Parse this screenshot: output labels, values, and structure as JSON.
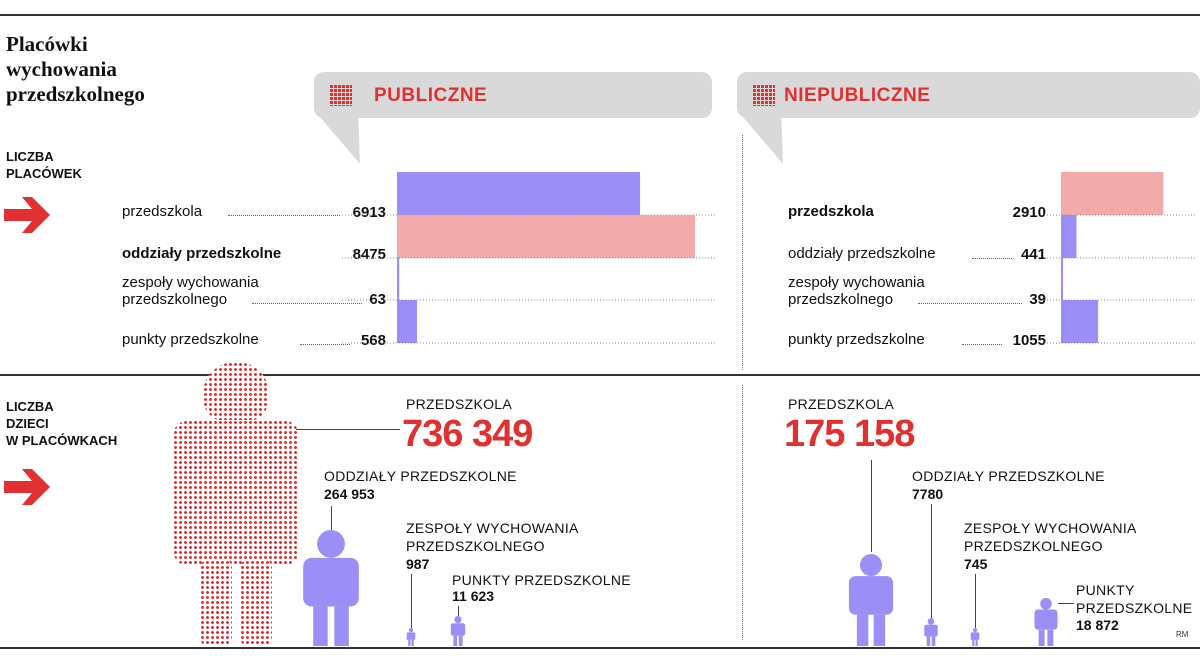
{
  "title": "Placówki\nwychowania\nprzedszkolnego",
  "bubbles": {
    "public": "PUBLICZNE",
    "nonpublic": "NIEPUBLICZNE"
  },
  "sections": {
    "facilities": "LICZBA\nPLACÓWEK",
    "children": "LICZBA\nDZIECI\nW PLACÓWKACH"
  },
  "colors": {
    "accent": "#e03030",
    "blue_bar": "#9b8ff7",
    "pink_bar": "#f2aaaa",
    "bubble": "#d9d9d9"
  },
  "facilities": {
    "public": [
      {
        "label": "przedszkola",
        "value": "6913",
        "bold": false
      },
      {
        "label": "oddziały przedszkolne",
        "value": "8475",
        "bold": true
      },
      {
        "label": "zespoły wychowania\nprzedszkolnego",
        "value": "63",
        "bold": false
      },
      {
        "label": "punkty przedszkolne",
        "value": "568",
        "bold": false
      }
    ],
    "nonpublic": [
      {
        "label": "przedszkola",
        "value": "2910",
        "bold": true
      },
      {
        "label": "oddziały przedszkolne",
        "value": "441",
        "bold": false
      },
      {
        "label": "zespoły wychowania\nprzedszkolnego",
        "value": "39",
        "bold": false
      },
      {
        "label": "punkty przedszkolne",
        "value": "1055",
        "bold": false
      }
    ]
  },
  "children": {
    "public": {
      "przedszkola": {
        "label": "PRZEDSZKOLA",
        "value": "736 349"
      },
      "oddzialy": {
        "label": "ODDZIAŁY PRZEDSZKOLNE",
        "value": "264 953"
      },
      "zespoly": {
        "label": "ZESPOŁY WYCHOWANIA\nPRZEDSZKOLNEGO",
        "value": "987"
      },
      "punkty": {
        "label": "PUNKTY PRZEDSZKOLNE",
        "value": "11 623"
      }
    },
    "nonpublic": {
      "przedszkola": {
        "label": "PRZEDSZKOLA",
        "value": "175 158"
      },
      "oddzialy": {
        "label": "ODDZIAŁY PRZEDSZKOLNE",
        "value": "7780"
      },
      "zespoly": {
        "label": "ZESPOŁY WYCHOWANIA\nPRZEDSZKOLNEGO",
        "value": "745"
      },
      "punkty": {
        "label": "PUNKTY\nPRZEDSZKOLNE",
        "value": "18 872"
      }
    }
  },
  "credit": "RM",
  "chart_data": {
    "type": "bar",
    "title": "Placówki wychowania przedszkolnego",
    "categories": [
      "przedszkola",
      "oddziały przedszkolne",
      "zespoły wychowania przedszkolnego",
      "punkty przedszkolne"
    ],
    "series": [
      {
        "name": "PUBLICZNE",
        "values": [
          6913,
          8475,
          63,
          568
        ]
      },
      {
        "name": "NIEPUBLICZNE",
        "values": [
          2910,
          441,
          39,
          1055
        ]
      }
    ],
    "children": {
      "categories": [
        "PRZEDSZKOLA",
        "ODDZIAŁY PRZEDSZKOLNE",
        "ZESPOŁY WYCHOWANIA PRZEDSZKOLNEGO",
        "PUNKTY PRZEDSZKOLNE"
      ],
      "series": [
        {
          "name": "PUBLICZNE",
          "values": [
            736349,
            264953,
            987,
            11623
          ]
        },
        {
          "name": "NIEPUBLICZNE",
          "values": [
            175158,
            7780,
            745,
            18872
          ]
        }
      ]
    }
  }
}
